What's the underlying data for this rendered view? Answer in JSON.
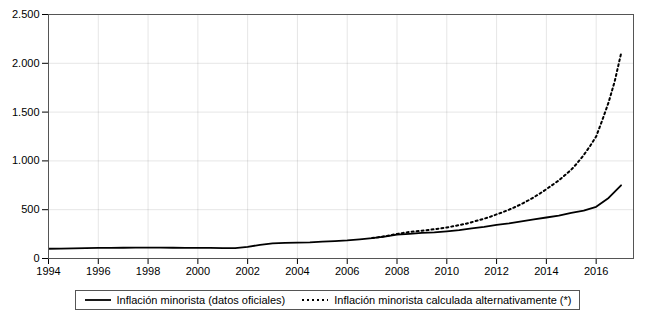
{
  "chart_data": {
    "type": "line",
    "xlim": [
      1994,
      2017.5
    ],
    "ylim": [
      0,
      2500
    ],
    "xticks": [
      1994,
      1996,
      1998,
      2000,
      2002,
      2004,
      2006,
      2008,
      2010,
      2012,
      2014,
      2016
    ],
    "yticks": [
      0,
      500,
      {
        "value": 1000,
        "label": "1.000"
      },
      {
        "value": 1500,
        "label": "1.500"
      },
      {
        "value": 2000,
        "label": "2.000"
      },
      {
        "value": 2500,
        "label": "2.500"
      }
    ],
    "grid": true,
    "legend": "bottom",
    "series": [
      {
        "name": "Inflación minorista (datos oficiales)",
        "color": "#000000",
        "line_style": "solid",
        "x": [
          1994,
          1994.5,
          1995,
          1995.5,
          1996,
          1996.5,
          1997,
          1997.5,
          1998,
          1998.5,
          1999,
          1999.5,
          2000,
          2000.5,
          2001,
          2001.5,
          2002,
          2002.5,
          2003,
          2003.5,
          2004,
          2004.5,
          2005,
          2005.5,
          2006,
          2006.5,
          2007,
          2007.5,
          2008,
          2008.5,
          2009,
          2009.5,
          2010,
          2010.5,
          2011,
          2011.5,
          2012,
          2012.5,
          2013,
          2013.5,
          2014,
          2014.5,
          2015,
          2015.5,
          2016,
          2016.5,
          2017
        ],
        "values": [
          100,
          102,
          104,
          106,
          108,
          109,
          110,
          111,
          111,
          111,
          110,
          109,
          108,
          108,
          107,
          107,
          120,
          140,
          155,
          160,
          163,
          166,
          172,
          178,
          185,
          196,
          208,
          224,
          245,
          253,
          262,
          267,
          278,
          290,
          308,
          325,
          345,
          360,
          380,
          400,
          420,
          440,
          468,
          490,
          530,
          620,
          750
        ]
      },
      {
        "name": "Inflación minorista calculada alternativamente (*)",
        "color": "#000000",
        "line_style": "dotted",
        "x": [
          2007,
          2007.25,
          2007.5,
          2007.75,
          2008,
          2008.25,
          2008.5,
          2008.75,
          2009,
          2009.25,
          2009.5,
          2009.75,
          2010,
          2010.25,
          2010.5,
          2010.75,
          2011,
          2011.25,
          2011.5,
          2011.75,
          2012,
          2012.25,
          2012.5,
          2012.75,
          2013,
          2013.25,
          2013.5,
          2013.75,
          2014,
          2014.25,
          2014.5,
          2014.75,
          2015,
          2015.25,
          2015.5,
          2015.75,
          2016,
          2016.25,
          2016.5,
          2016.75,
          2017
        ],
        "values": [
          210,
          218,
          228,
          238,
          252,
          262,
          272,
          278,
          285,
          292,
          300,
          308,
          318,
          330,
          342,
          355,
          372,
          390,
          408,
          428,
          452,
          475,
          500,
          528,
          558,
          592,
          628,
          668,
          710,
          755,
          800,
          855,
          910,
          980,
          1060,
          1150,
          1250,
          1420,
          1600,
          1820,
          2100
        ]
      }
    ]
  }
}
